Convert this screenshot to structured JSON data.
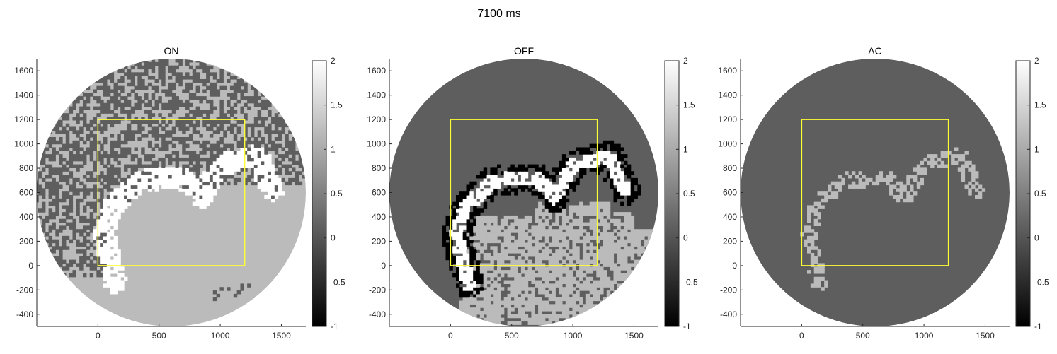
{
  "suptitle": "7100 ms",
  "colors": {
    "background": "#ffffff",
    "roi_box": "#ffff33",
    "axis": "#262626",
    "colormap": "gray"
  },
  "chart_data": [
    {
      "type": "heatmap",
      "title": "ON",
      "xlabel": "",
      "ylabel": "",
      "xlim": [
        -500,
        1700
      ],
      "ylim": [
        -500,
        1700
      ],
      "xticks": [
        0,
        500,
        1000,
        1500
      ],
      "yticks": [
        -400,
        -200,
        0,
        200,
        400,
        600,
        800,
        1000,
        1200,
        1400,
        1600
      ],
      "grid": false,
      "roi_box": {
        "x0": 0,
        "y0": 0,
        "x1": 1200,
        "y1": 1200
      },
      "disk": {
        "cx": 600,
        "cy": 600,
        "r": 1100
      },
      "colorbar": {
        "min": -1,
        "max": 2,
        "ticks": [
          "2",
          "1.5",
          "1",
          "0.5",
          "0",
          "-0.5",
          "-1"
        ]
      },
      "field_value": 1.2,
      "noise": {
        "value_a": 0.1,
        "value_b": 1.2,
        "fraction_a": 0.5,
        "y_min": 500
      },
      "white_band_value": 2.0,
      "black_band_value": -1.0
    },
    {
      "type": "heatmap",
      "title": "OFF",
      "xlabel": "",
      "ylabel": "",
      "xlim": [
        -500,
        1700
      ],
      "ylim": [
        -500,
        1700
      ],
      "xticks": [
        0,
        500,
        1000,
        1500
      ],
      "yticks": [
        -400,
        -200,
        0,
        200,
        400,
        600,
        800,
        1000,
        1200,
        1400,
        1600
      ],
      "grid": false,
      "roi_box": {
        "x0": 0,
        "y0": 0,
        "x1": 1200,
        "y1": 1200
      },
      "disk": {
        "cx": 600,
        "cy": 600,
        "r": 1100
      },
      "colorbar": {
        "min": -1,
        "max": 2,
        "ticks": [
          "2",
          "1.5",
          "1",
          "0.5",
          "0",
          "-0.5",
          "-1"
        ]
      },
      "field_value": 0.1,
      "white_band_value": 2.0,
      "black_band_value": -1.0,
      "gray_region_value": 1.2
    },
    {
      "type": "heatmap",
      "title": "AC",
      "xlabel": "",
      "ylabel": "",
      "xlim": [
        -500,
        1700
      ],
      "ylim": [
        -500,
        1700
      ],
      "xticks": [
        0,
        500,
        1000,
        1500
      ],
      "yticks": [
        -400,
        -200,
        0,
        200,
        400,
        600,
        800,
        1000,
        1200,
        1400,
        1600
      ],
      "grid": false,
      "roi_box": {
        "x0": 0,
        "y0": 0,
        "x1": 1200,
        "y1": 1200
      },
      "disk": {
        "cx": 600,
        "cy": 600,
        "r": 1100
      },
      "colorbar": {
        "min": -1,
        "max": 2,
        "ticks": [
          "2",
          "1.5",
          "1",
          "0.5",
          "0",
          "-0.5",
          "-1"
        ]
      },
      "field_value": 0.1,
      "band_value": 1.2
    }
  ]
}
